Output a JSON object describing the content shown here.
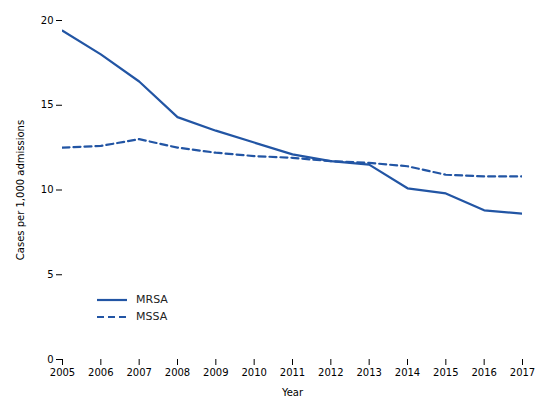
{
  "chart_data": {
    "type": "line",
    "xlabel": "Year",
    "ylabel": "Cases per 1,000 admissions",
    "x": [
      2005,
      2006,
      2007,
      2008,
      2009,
      2010,
      2011,
      2012,
      2013,
      2014,
      2015,
      2016,
      2017
    ],
    "series": [
      {
        "name": "MRSA",
        "color": "#2255a4",
        "line_style": "solid",
        "values": [
          19.4,
          18.0,
          16.4,
          14.3,
          13.5,
          12.8,
          12.1,
          11.7,
          11.5,
          10.1,
          9.8,
          8.8,
          8.6
        ]
      },
      {
        "name": "MSSA",
        "color": "#2255a4",
        "line_style": "dashed",
        "values": [
          12.5,
          12.6,
          13.0,
          12.5,
          12.2,
          12.0,
          11.9,
          11.7,
          11.6,
          11.4,
          10.9,
          10.8,
          10.8
        ]
      }
    ],
    "xlim": [
      2005,
      2017
    ],
    "xticks": [
      2005,
      2006,
      2007,
      2008,
      2009,
      2010,
      2011,
      2012,
      2013,
      2014,
      2015,
      2016,
      2017
    ],
    "ylim": [
      0,
      20
    ],
    "yticks": [
      0,
      5,
      10,
      15,
      20
    ],
    "legend": "lower left",
    "grid": false
  }
}
